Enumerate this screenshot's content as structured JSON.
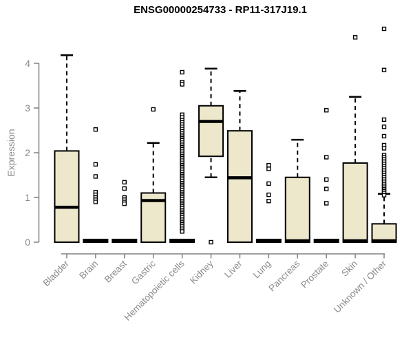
{
  "chart_data": {
    "type": "boxplot",
    "title": "ENSG00000254733 - RP11-317J19.1",
    "ylabel": "Expression",
    "xlabel": "",
    "ylim": [
      0,
      4.8
    ],
    "yticks": [
      0,
      1,
      2,
      3,
      4
    ],
    "grid": "off",
    "legend": "none",
    "categories": [
      "Bladder",
      "Brain",
      "Breast",
      "Gastric",
      "Hematopoietic cells",
      "Kidney",
      "Liver",
      "Lung",
      "Pancreas",
      "Prostate",
      "Skin",
      "Unknown / Other"
    ],
    "boxes": [
      {
        "category": "Bladder",
        "low": 0,
        "q1": 0,
        "median": 0.78,
        "q3": 2.04,
        "high": 4.18,
        "outliers": []
      },
      {
        "category": "Brain",
        "low": 0,
        "q1": 0,
        "median": 0,
        "q3": 0,
        "high": 0,
        "outliers": [
          2.52,
          1.74,
          1.47,
          1.12,
          1.06,
          1.0,
          0.95,
          0.9
        ]
      },
      {
        "category": "Breast",
        "low": 0,
        "q1": 0,
        "median": 0,
        "q3": 0,
        "high": 0,
        "outliers": [
          1.34,
          1.2,
          1.0,
          0.95,
          0.9,
          0.86
        ]
      },
      {
        "category": "Gastric",
        "low": 0,
        "q1": 0,
        "median": 0.93,
        "q3": 1.1,
        "high": 2.22,
        "outliers": [
          2.97
        ]
      },
      {
        "category": "Hematopoietic cells",
        "low": 0,
        "q1": 0,
        "median": 0,
        "q3": 0,
        "high": 0,
        "outliers": [
          3.8,
          3.58,
          3.53,
          2.85,
          2.79,
          2.73,
          2.68,
          2.63,
          2.58,
          2.53,
          2.48,
          2.44,
          2.4,
          2.36,
          2.32,
          2.28,
          2.24,
          2.2,
          2.16,
          2.12,
          2.08,
          2.04,
          2.0,
          1.96,
          1.92,
          1.88,
          1.84,
          1.8,
          1.76,
          1.72,
          1.68,
          1.64,
          1.6,
          1.56,
          1.52,
          1.48,
          1.44,
          1.4,
          1.36,
          1.32,
          1.28,
          1.24,
          1.2,
          1.16,
          1.12,
          1.08,
          1.04,
          1.0,
          0.96,
          0.92,
          0.88,
          0.84,
          0.8,
          0.76,
          0.72,
          0.68,
          0.64,
          0.6,
          0.56,
          0.52,
          0.48,
          0.44,
          0.4,
          0.36,
          0.32,
          0.28,
          0.24
        ]
      },
      {
        "category": "Kidney",
        "low": 1.45,
        "q1": 1.92,
        "median": 2.7,
        "q3": 3.05,
        "high": 3.88,
        "outliers": [
          0.0
        ]
      },
      {
        "category": "Liver",
        "low": 0,
        "q1": 0,
        "median": 1.44,
        "q3": 2.49,
        "high": 3.38,
        "outliers": []
      },
      {
        "category": "Lung",
        "low": 0,
        "q1": 0,
        "median": 0,
        "q3": 0,
        "high": 0,
        "outliers": [
          1.72,
          1.64,
          1.31,
          1.06,
          0.92
        ]
      },
      {
        "category": "Pancreas",
        "low": 0,
        "q1": 0,
        "median": 0.03,
        "q3": 1.45,
        "high": 2.29,
        "outliers": []
      },
      {
        "category": "Prostate",
        "low": 0,
        "q1": 0,
        "median": 0,
        "q3": 0,
        "high": 0,
        "outliers": [
          2.95,
          1.9,
          1.4,
          1.19,
          0.87
        ]
      },
      {
        "category": "Skin",
        "low": 0,
        "q1": 0,
        "median": 0.03,
        "q3": 1.77,
        "high": 3.25,
        "outliers": [
          4.58
        ]
      },
      {
        "category": "Unknown / Other",
        "low": 0,
        "q1": 0,
        "median": 0.03,
        "q3": 0.41,
        "high": 1.08,
        "outliers": [
          4.77,
          3.85,
          2.74,
          2.58,
          2.37,
          2.17,
          2.1,
          1.95,
          1.9,
          1.85,
          1.8,
          1.75,
          1.7,
          1.65,
          1.6,
          1.55,
          1.5,
          1.45,
          1.4,
          1.35,
          1.3,
          1.26,
          1.22,
          1.18,
          1.14,
          1.1,
          1.05
        ]
      }
    ],
    "style": {
      "box_fill": "#EDE8CB",
      "box_stroke": "#000000",
      "axis_color": "#808080",
      "label_color": "#8a8a8a",
      "title_color": "#000000",
      "background": "#ffffff"
    }
  }
}
